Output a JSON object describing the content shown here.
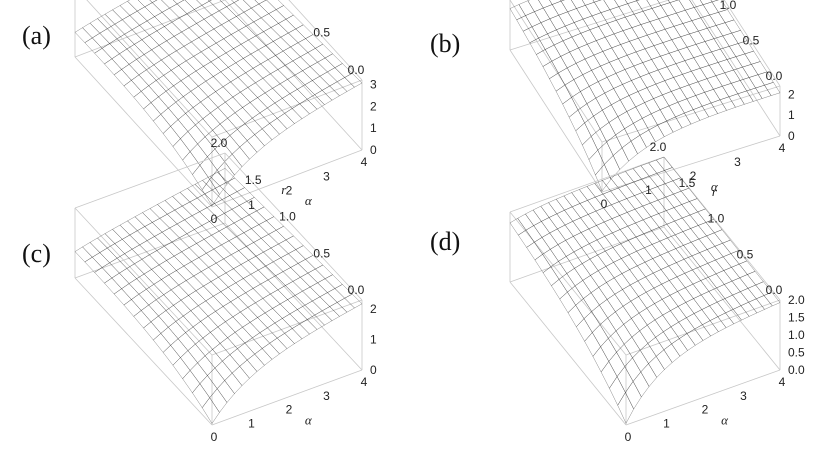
{
  "chart_data": [
    {
      "label": "(a)",
      "type": "surface3d",
      "x_axis": {
        "name": "α",
        "range": [
          0,
          4
        ],
        "ticks": [
          "0",
          "1",
          "2",
          "3",
          "4"
        ]
      },
      "y_axis": {
        "name": "r",
        "range": [
          0,
          2
        ],
        "ticks": [
          "2.0",
          "1.5",
          "1.0",
          "0.5",
          "0.0"
        ]
      },
      "z_axis": {
        "range": [
          0,
          3.2
        ],
        "ticks": [
          "0",
          "1",
          "2",
          "3"
        ]
      },
      "corner_values": {
        "alpha0_r0": 2.0,
        "alpha0_r2": 1.3,
        "alpha4_r0": 3.1,
        "alpha4_r2": 2.4,
        "alpha0_r_low": 0.05
      },
      "colormap": [
        "#3a55a8",
        "#3f8a5a",
        "#b7c83a",
        "#f0d84a",
        "#e8843a",
        "#c03a2e"
      ]
    },
    {
      "label": "(b)",
      "type": "surface3d",
      "x_axis": {
        "name": "α",
        "range": [
          0,
          4
        ],
        "ticks": [
          "0",
          "1",
          "2",
          "3",
          "4"
        ]
      },
      "y_axis": {
        "name": "r",
        "range": [
          0,
          2
        ],
        "ticks": [
          "2.0",
          "1.5",
          "1.0",
          "0.5",
          "0.0"
        ]
      },
      "z_axis": {
        "range": [
          0,
          2.4
        ],
        "ticks": [
          "0",
          "1",
          "2"
        ]
      },
      "corner_values": {
        "alpha0_r0": 2.2,
        "alpha0_r2": 2.3,
        "alpha4_r0": 2.1,
        "alpha4_r2": 2.25,
        "alpha0_r_low": 0.05
      },
      "colormap": [
        "#3a55a8",
        "#3f8a5a",
        "#b7c83a",
        "#f0d84a",
        "#e8843a",
        "#c03a2e"
      ]
    },
    {
      "label": "(c)",
      "type": "surface3d",
      "x_axis": {
        "name": "α",
        "range": [
          0,
          4
        ],
        "ticks": [
          "0",
          "1",
          "2",
          "3",
          "4"
        ]
      },
      "y_axis": {
        "name": "r",
        "range": [
          0,
          2
        ],
        "ticks": [
          "2.0",
          "1.5",
          "1.0",
          "0.5",
          "0.0"
        ]
      },
      "z_axis": {
        "range": [
          0,
          2.3
        ],
        "ticks": [
          "0",
          "1",
          "2"
        ]
      },
      "corner_values": {
        "alpha0_r0": 1.4,
        "alpha0_r2": 1.0,
        "alpha4_r0": 2.2,
        "alpha4_r2": 1.8,
        "alpha0_r_low": 0.05
      },
      "colormap": [
        "#3a55a8",
        "#3f8a5a",
        "#b7c83a",
        "#f0d84a",
        "#e8843a",
        "#c03a2e"
      ]
    },
    {
      "label": "(d)",
      "type": "surface3d",
      "x_axis": {
        "name": "α",
        "range": [
          0,
          4
        ],
        "ticks": [
          "0",
          "1",
          "2",
          "3",
          "4"
        ]
      },
      "y_axis": {
        "name": "r",
        "range": [
          0,
          2
        ],
        "ticks": [
          "2.0",
          "1.5",
          "1.0",
          "0.5",
          "0.0"
        ]
      },
      "z_axis": {
        "range": [
          0,
          2.0
        ],
        "ticks": [
          "0.0",
          "0.5",
          "1.0",
          "1.5",
          "2.0"
        ]
      },
      "corner_values": {
        "alpha0_r0": 1.7,
        "alpha0_r2": 1.95,
        "alpha4_r0": 1.95,
        "alpha4_r2": 2.0,
        "alpha0_r_low": 0.05
      },
      "colormap": [
        "#3a55a8",
        "#3f8a5a",
        "#b7c83a",
        "#f0d84a",
        "#e8843a",
        "#c03a2e"
      ]
    }
  ]
}
